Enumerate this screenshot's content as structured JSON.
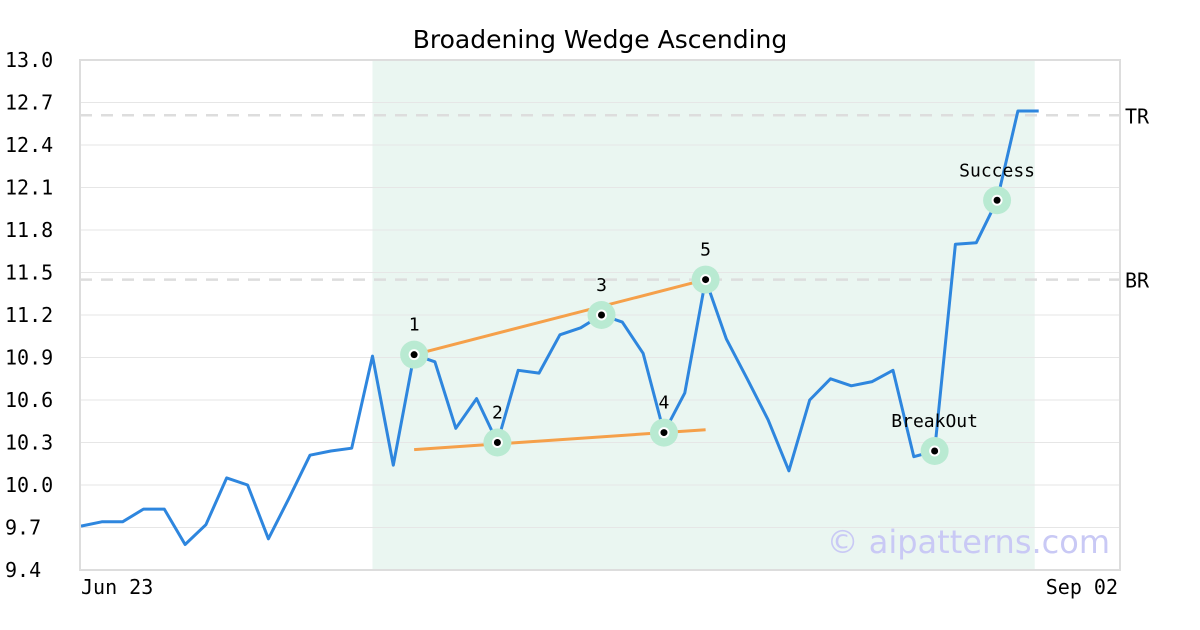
{
  "chart_data": {
    "type": "line",
    "title": "Broadening Wedge Ascending",
    "xlabel": "",
    "ylabel": "",
    "ylim": [
      9.4,
      13.0
    ],
    "yticks": [
      "13.0",
      "12.7",
      "12.4",
      "12.1",
      "11.8",
      "11.5",
      "11.2",
      "10.9",
      "10.6",
      "10.3",
      "10.0",
      "9.7",
      "9.4"
    ],
    "xtick_labels": [
      "Jun 23",
      "Sep 02"
    ],
    "grid": true,
    "series": [
      {
        "values": [
          9.71,
          9.74,
          9.74,
          9.83,
          9.83,
          9.58,
          9.72,
          10.05,
          10.0,
          9.62,
          9.91,
          10.21,
          10.24,
          10.26,
          10.91,
          10.14,
          10.92,
          10.87,
          10.4,
          10.61,
          10.3,
          10.81,
          10.79,
          11.06,
          11.11,
          11.2,
          11.15,
          10.93,
          10.37,
          10.65,
          11.45,
          11.03,
          10.75,
          10.46,
          10.1,
          10.6,
          10.75,
          10.7,
          10.73,
          10.81,
          10.2,
          10.24,
          11.7,
          11.71,
          12.01,
          12.64,
          12.64
        ],
        "color": "#2e86de"
      }
    ],
    "highlight_range": {
      "start_index": 14,
      "end_index": 46,
      "color": "#eaf6f1"
    },
    "levels": [
      {
        "label": "TR",
        "value": 12.61
      },
      {
        "label": "BR",
        "value": 11.45
      }
    ],
    "points": [
      {
        "label": "1",
        "index": 16,
        "value": 10.92
      },
      {
        "label": "2",
        "index": 20,
        "value": 10.3
      },
      {
        "label": "3",
        "index": 25,
        "value": 11.2
      },
      {
        "label": "4",
        "index": 28,
        "value": 10.37
      },
      {
        "label": "5",
        "index": 30,
        "value": 11.45
      },
      {
        "label": "BreakOut",
        "index": 41,
        "value": 10.24
      },
      {
        "label": "Success",
        "index": 44,
        "value": 12.01
      }
    ],
    "trendlines": [
      {
        "from_index": 16,
        "from_value": 10.92,
        "to_index": 30,
        "to_value": 11.45,
        "color": "#f5a04a"
      },
      {
        "from_index": 16,
        "from_value": 10.25,
        "to_index": 30,
        "to_value": 10.39,
        "color": "#f5a04a"
      }
    ],
    "watermark": "© aipatterns.com"
  }
}
